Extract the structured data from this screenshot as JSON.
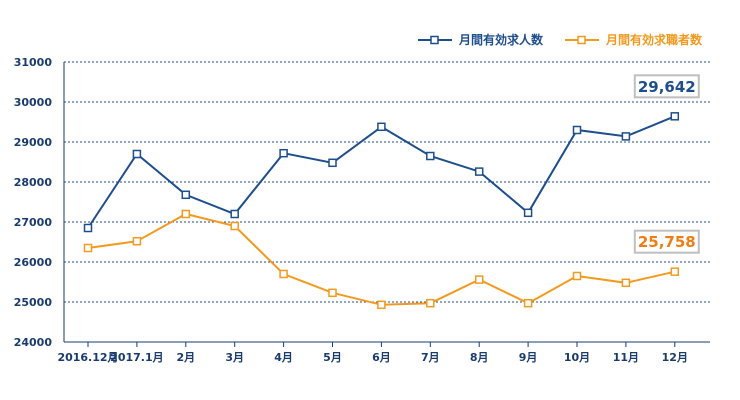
{
  "chart_data": {
    "type": "line",
    "categories": [
      "2016.12月",
      "2017.1月",
      "2月",
      "3月",
      "4月",
      "5月",
      "6月",
      "7月",
      "8月",
      "9月",
      "10月",
      "11月",
      "12月"
    ],
    "ylim": [
      24000,
      31000
    ],
    "yticks": [
      24000,
      25000,
      26000,
      27000,
      28000,
      29000,
      30000,
      31000
    ],
    "grid": "horizontal dotted",
    "legend_position": "top-right",
    "series": [
      {
        "name": "月間有効求人数",
        "color": "#1f4e8c",
        "values": [
          26850,
          28700,
          27680,
          27200,
          28720,
          28480,
          29380,
          28650,
          28260,
          27230,
          29300,
          29140,
          29642
        ],
        "callout": "29,642"
      },
      {
        "name": "月間有効求職者数",
        "color": "#f29a1f",
        "values": [
          26350,
          26520,
          27200,
          26900,
          25700,
          25230,
          24930,
          24970,
          25560,
          24970,
          25650,
          25480,
          25758
        ],
        "callout": "25,758"
      }
    ]
  }
}
